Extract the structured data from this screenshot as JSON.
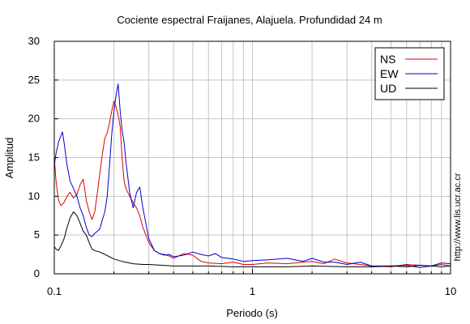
{
  "chart_data": {
    "type": "line",
    "title": "Cociente espectral Fraijanes, Alajuela. Profundidad 24 m",
    "xlabel": "Periodo (s)",
    "ylabel": "Amplitud",
    "xscale": "log",
    "xlim": [
      0.1,
      10
    ],
    "ylim": [
      0,
      30
    ],
    "x_ticks": [
      {
        "value": 0.1,
        "label": "0.1"
      },
      {
        "value": 1,
        "label": "1"
      },
      {
        "value": 10,
        "label": "10"
      }
    ],
    "y_ticks": [
      {
        "value": 0,
        "label": "0"
      },
      {
        "value": 5,
        "label": "5"
      },
      {
        "value": 10,
        "label": "10"
      },
      {
        "value": 15,
        "label": "15"
      },
      {
        "value": 20,
        "label": "20"
      },
      {
        "value": 25,
        "label": "25"
      },
      {
        "value": 30,
        "label": "30"
      }
    ],
    "grid": true,
    "legend_position": "top-right",
    "watermark": "http://www.lis.ucr.ac.cr",
    "series": [
      {
        "name": "NS",
        "color": "#dd0000",
        "x": [
          0.1,
          0.102,
          0.105,
          0.108,
          0.112,
          0.116,
          0.12,
          0.125,
          0.13,
          0.135,
          0.14,
          0.145,
          0.15,
          0.155,
          0.16,
          0.165,
          0.17,
          0.175,
          0.18,
          0.185,
          0.19,
          0.195,
          0.2,
          0.205,
          0.21,
          0.215,
          0.22,
          0.225,
          0.23,
          0.24,
          0.25,
          0.26,
          0.27,
          0.28,
          0.3,
          0.32,
          0.34,
          0.36,
          0.38,
          0.4,
          0.45,
          0.5,
          0.55,
          0.6,
          0.7,
          0.8,
          0.9,
          1.0,
          1.2,
          1.5,
          1.8,
          2.0,
          2.3,
          2.6,
          3.0,
          3.5,
          4.0,
          5.0,
          6.0,
          7.0,
          8.0,
          9.0,
          10.0
        ],
        "y": [
          15,
          12,
          9.5,
          8.8,
          9.2,
          10,
          10.5,
          9.8,
          10.2,
          11.5,
          12.2,
          9.5,
          8,
          7,
          8,
          10.5,
          13,
          15.5,
          17.5,
          18.2,
          19.5,
          21,
          22.3,
          21.5,
          20.5,
          19,
          15,
          12,
          11,
          10,
          9.2,
          8.5,
          7.5,
          6,
          4,
          3,
          2.6,
          2.5,
          2.3,
          2.0,
          2.6,
          2.4,
          1.6,
          1.4,
          1.3,
          1.5,
          1.2,
          1.2,
          1.4,
          1.3,
          1.5,
          1.6,
          1.3,
          1.9,
          1.4,
          1.2,
          1.0,
          0.9,
          1.2,
          1.1,
          1.0,
          1.2,
          1.0
        ]
      },
      {
        "name": "EW",
        "color": "#0000cc",
        "x": [
          0.1,
          0.102,
          0.105,
          0.108,
          0.11,
          0.112,
          0.116,
          0.12,
          0.125,
          0.13,
          0.135,
          0.14,
          0.145,
          0.15,
          0.155,
          0.16,
          0.165,
          0.17,
          0.175,
          0.18,
          0.185,
          0.19,
          0.195,
          0.2,
          0.205,
          0.21,
          0.215,
          0.22,
          0.225,
          0.23,
          0.24,
          0.25,
          0.26,
          0.27,
          0.28,
          0.3,
          0.32,
          0.34,
          0.36,
          0.38,
          0.4,
          0.45,
          0.5,
          0.55,
          0.6,
          0.65,
          0.7,
          0.8,
          0.9,
          1.0,
          1.2,
          1.5,
          1.8,
          2.0,
          2.3,
          2.6,
          3.0,
          3.5,
          4.0,
          5.0,
          6.0,
          7.0,
          8.0,
          9.0,
          10.0
        ],
        "y": [
          14,
          15.5,
          17,
          17.8,
          18.3,
          17,
          14,
          12,
          11,
          10,
          8.5,
          7.5,
          6,
          5,
          4.8,
          5.2,
          5.5,
          5.8,
          7,
          8,
          10,
          14,
          18,
          21,
          23,
          24.5,
          21,
          18.5,
          17,
          14.5,
          10.5,
          8.5,
          10.5,
          11.2,
          8.5,
          4.5,
          3,
          2.6,
          2.4,
          2.5,
          2.2,
          2.4,
          2.8,
          2.5,
          2.3,
          2.6,
          2.1,
          1.9,
          1.6,
          1.7,
          1.8,
          2.0,
          1.6,
          2.0,
          1.5,
          1.5,
          1.2,
          1.5,
          1.0,
          1.0,
          1.1,
          0.8,
          1.0,
          1.4,
          1.3
        ]
      },
      {
        "name": "UD",
        "color": "#000000",
        "x": [
          0.1,
          0.102,
          0.105,
          0.108,
          0.112,
          0.116,
          0.12,
          0.125,
          0.13,
          0.135,
          0.14,
          0.145,
          0.15,
          0.155,
          0.16,
          0.17,
          0.18,
          0.19,
          0.2,
          0.22,
          0.25,
          0.28,
          0.3,
          0.35,
          0.4,
          0.5,
          0.6,
          0.8,
          1.0,
          1.5,
          2.0,
          3.0,
          4.0,
          5.0,
          6.0,
          7.0,
          8.0,
          9.0,
          10.0
        ],
        "y": [
          3.5,
          3.2,
          3.0,
          3.6,
          4.5,
          6.0,
          7.2,
          8.0,
          7.5,
          6.5,
          5.5,
          5.0,
          4.0,
          3.2,
          3.0,
          2.8,
          2.5,
          2.2,
          1.9,
          1.6,
          1.3,
          1.2,
          1.2,
          1.1,
          1.0,
          1.0,
          1.0,
          0.9,
          0.9,
          0.9,
          1.0,
          0.9,
          0.9,
          1.0,
          0.9,
          1.1,
          1.0,
          0.9,
          1.0
        ]
      }
    ]
  }
}
